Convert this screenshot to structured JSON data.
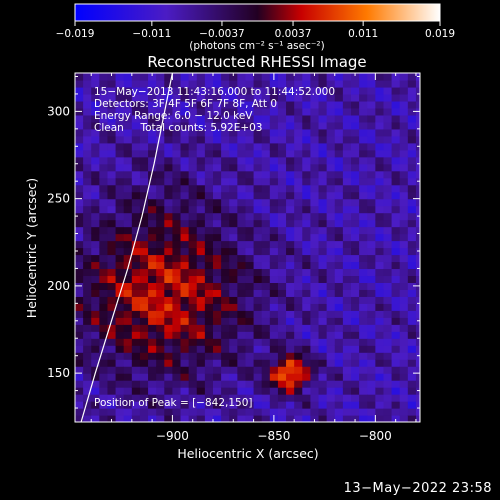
{
  "chart_data": {
    "type": "heatmap",
    "title": "Reconstructed RHESSI Image",
    "xlabel": "Heliocentric X (arcsec)",
    "ylabel": "Heliocentric Y (arcsec)",
    "xlim": [
      -948,
      -778
    ],
    "ylim": [
      122,
      322
    ],
    "x_ticks": [
      -900,
      -850,
      -800
    ],
    "x_tick_labels": [
      "−900",
      "−850",
      "−800"
    ],
    "y_ticks": [
      150,
      200,
      250,
      300
    ],
    "y_tick_labels": [
      "150",
      "200",
      "250",
      "300"
    ],
    "colorbar": {
      "range": [
        -0.019,
        0.019
      ],
      "ticks": [
        -0.019,
        -0.011,
        -0.0037,
        0.0037,
        0.011,
        0.019
      ],
      "tick_labels": [
        "−0.019",
        "−0.011",
        "−0.0037",
        "0.0037",
        "0.011",
        "0.019"
      ],
      "units": "(photons cm⁻² s⁻¹ asec⁻²)"
    },
    "annotations": [
      "15−May−2013 11:43:16.000 to 11:44:52.000",
      "Detectors: 3F 4F 5F 6F 7F 8F, Att 0",
      "Energy Range: 6.0 − 12.0 keV",
      "Clean     Total counts: 5.92E+03"
    ],
    "peak_label": "Position of Peak = [−842,150]",
    "peak": {
      "x": -842,
      "y": 150,
      "value": 0.019
    },
    "bright_region": {
      "x": -905,
      "y": 195,
      "value": 0.0065
    },
    "limb_curve": {
      "x": [
        -945,
        -938,
        -930,
        -922,
        -915,
        -909,
        -900
      ],
      "y": [
        122,
        150,
        180,
        210,
        240,
        270,
        322
      ]
    },
    "grid": false
  },
  "footer": {
    "date": "13−May−2022 23:58"
  },
  "colors": {
    "background": "#000000",
    "foreground": "#ffffff",
    "limb": "#ffffff"
  }
}
